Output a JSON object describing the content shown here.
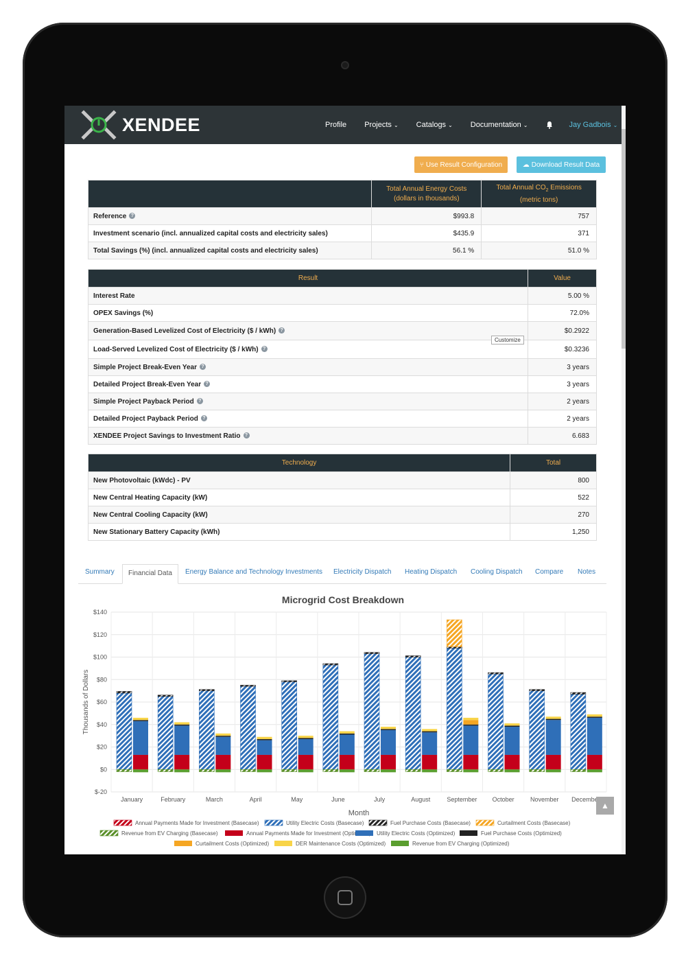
{
  "nav": {
    "brand": "XENDEE",
    "items": [
      {
        "label": "Profile",
        "caret": false
      },
      {
        "label": "Projects",
        "caret": true
      },
      {
        "label": "Catalogs",
        "caret": true
      },
      {
        "label": "Documentation",
        "caret": true
      }
    ],
    "user": "Jay Gadbois",
    "bell_icon": "bell-icon"
  },
  "actions": {
    "use_config": "Use Result Configuration",
    "download": "Download Result Data"
  },
  "summary_table": {
    "headers": [
      "",
      "Total Annual Energy Costs (dollars in thousands)",
      "Total Annual CO2 Emissions (metric tons)"
    ],
    "header_costs_line1": "Total Annual Energy Costs",
    "header_costs_line2": "(dollars in thousands)",
    "header_emissions_prefix": "Total Annual CO",
    "header_emissions_sub": "2",
    "header_emissions_suffix": " Emissions",
    "header_emissions_line2": "(metric tons)",
    "rows": [
      {
        "label": "Reference",
        "help": true,
        "cost": "$993.8",
        "emissions": "757"
      },
      {
        "label": "Investment scenario (incl. annualized capital costs and electricity sales)",
        "help": false,
        "cost": "$435.9",
        "emissions": "371"
      },
      {
        "label": "Total Savings (%) (incl. annualized capital costs and electricity sales)",
        "help": false,
        "cost": "56.1 %",
        "emissions": "51.0 %"
      }
    ]
  },
  "result_table": {
    "headers": [
      "Result",
      "Value"
    ],
    "rows": [
      {
        "label": "Interest Rate",
        "help": false,
        "value": "5.00 %"
      },
      {
        "label": "OPEX Savings (%)",
        "help": false,
        "value": "72.0%"
      },
      {
        "label": "Generation-Based Levelized Cost of Electricity ($ / kWh)",
        "help": true,
        "value": "$0.2922"
      },
      {
        "label": "Load-Served Levelized Cost of Electricity ($ / kWh)",
        "help": true,
        "value": "$0.3236"
      },
      {
        "label": "Simple Project Break-Even Year",
        "help": true,
        "value": "3 years"
      },
      {
        "label": "Detailed Project Break-Even Year",
        "help": true,
        "value": "3 years"
      },
      {
        "label": "Simple Project Payback Period",
        "help": true,
        "value": "2 years"
      },
      {
        "label": "Detailed Project Payback Period",
        "help": true,
        "value": "2 years"
      },
      {
        "label": "XENDEE Project Savings to Investment Ratio",
        "help": true,
        "value": "6.683"
      }
    ],
    "customize_label": "Customize"
  },
  "tech_table": {
    "headers": [
      "Technology",
      "Total"
    ],
    "rows": [
      {
        "label": "New Photovoltaic (kWdc) - PV",
        "value": "800"
      },
      {
        "label": "New Central Heating Capacity (kW)",
        "value": "522"
      },
      {
        "label": "New Central Cooling Capacity (kW)",
        "value": "270"
      },
      {
        "label": "New Stationary Battery Capacity (kWh)",
        "value": "1,250"
      }
    ]
  },
  "tabs": [
    {
      "label": "Summary",
      "active": false
    },
    {
      "label": "Financial Data",
      "active": true
    },
    {
      "label": "Energy Balance and Technology Investments",
      "active": false
    },
    {
      "label": "Electricity Dispatch",
      "active": false
    },
    {
      "label": "Heating Dispatch",
      "active": false
    },
    {
      "label": "Cooling Dispatch",
      "active": false
    },
    {
      "label": "Compare",
      "active": false
    },
    {
      "label": "Notes",
      "active": false
    }
  ],
  "chart_data": {
    "type": "bar",
    "title": "Microgrid Cost Breakdown",
    "xlabel": "Month",
    "ylabel": "Thousands of Dollars",
    "ylim": [
      -20,
      140
    ],
    "yticks": [
      "$-20",
      "$0",
      "$20",
      "$40",
      "$60",
      "$80",
      "$100",
      "$120",
      "$140"
    ],
    "grid": true,
    "legend_position": "bottom",
    "categories": [
      "January",
      "February",
      "March",
      "April",
      "May",
      "June",
      "July",
      "August",
      "September",
      "October",
      "November",
      "December"
    ],
    "series": [
      {
        "name": "Annual Payments Made for Investment (Basecase)",
        "stack": "basecase",
        "color": "#c4001a",
        "hatched": true,
        "values": [
          0,
          0,
          0,
          0,
          0,
          0,
          0,
          0,
          0,
          0,
          0,
          0
        ]
      },
      {
        "name": "Utility Electric Costs (Basecase)",
        "stack": "basecase",
        "color": "#2f6fb8",
        "hatched": true,
        "values": [
          68,
          65,
          70,
          74,
          78,
          93,
          103,
          100,
          108,
          85,
          70,
          67
        ]
      },
      {
        "name": "Fuel Purchase Costs (Basecase)",
        "stack": "basecase",
        "color": "#222222",
        "hatched": true,
        "values": [
          1.5,
          1.2,
          1.2,
          1,
          1,
          1.2,
          1.2,
          1.2,
          1.2,
          1.2,
          1.2,
          1.5
        ]
      },
      {
        "name": "Curtailment Costs (Basecase)",
        "stack": "basecase",
        "color": "#f5a623",
        "hatched": true,
        "values": [
          0,
          0,
          0,
          0,
          0,
          0,
          0,
          0,
          24,
          0,
          0,
          0
        ]
      },
      {
        "name": "Revenue from EV Charging (Basecase)",
        "stack": "basecase",
        "color": "#5a8f29",
        "hatched": true,
        "values": [
          -2,
          -2,
          -2,
          -2,
          -2,
          -2,
          -2,
          -2,
          -2,
          -2,
          -2,
          -2
        ]
      },
      {
        "name": "Annual Payments Made for Investment (Optimized)",
        "stack": "optimized",
        "color": "#c4001a",
        "hatched": false,
        "values": [
          13,
          13,
          13,
          13,
          13,
          13,
          13,
          13,
          13,
          13,
          13,
          13
        ]
      },
      {
        "name": "Utility Electric Costs (Optimized)",
        "stack": "optimized",
        "color": "#2f6fb8",
        "hatched": false,
        "values": [
          30,
          26,
          16,
          13,
          14,
          18,
          22,
          20,
          26,
          25,
          31,
          33
        ]
      },
      {
        "name": "Fuel Purchase Costs (Optimized)",
        "stack": "optimized",
        "color": "#222222",
        "hatched": false,
        "values": [
          1,
          1,
          1,
          1,
          1,
          1,
          1,
          1,
          1,
          1,
          1,
          1
        ]
      },
      {
        "name": "Curtailment Costs (Optimized)",
        "stack": "optimized",
        "color": "#f5a623",
        "hatched": false,
        "values": [
          0,
          0,
          0,
          0,
          0,
          0,
          0,
          0,
          4,
          0,
          0,
          0
        ]
      },
      {
        "name": "DER Maintenance Costs (Optimized)",
        "stack": "optimized",
        "color": "#f8d448",
        "hatched": false,
        "values": [
          2,
          2,
          2,
          2,
          2,
          2,
          2,
          2,
          2,
          2,
          2,
          2
        ]
      },
      {
        "name": "Revenue from EV Charging (Optimized)",
        "stack": "optimized",
        "color": "#5a9e2f",
        "hatched": false,
        "values": [
          -2.5,
          -2.5,
          -2.5,
          -2.5,
          -2.5,
          -2.5,
          -2.5,
          -2.5,
          -2.5,
          -2.5,
          -2.5,
          -2.5
        ]
      }
    ]
  },
  "scroll_top_icon": "chevron-up-icon"
}
